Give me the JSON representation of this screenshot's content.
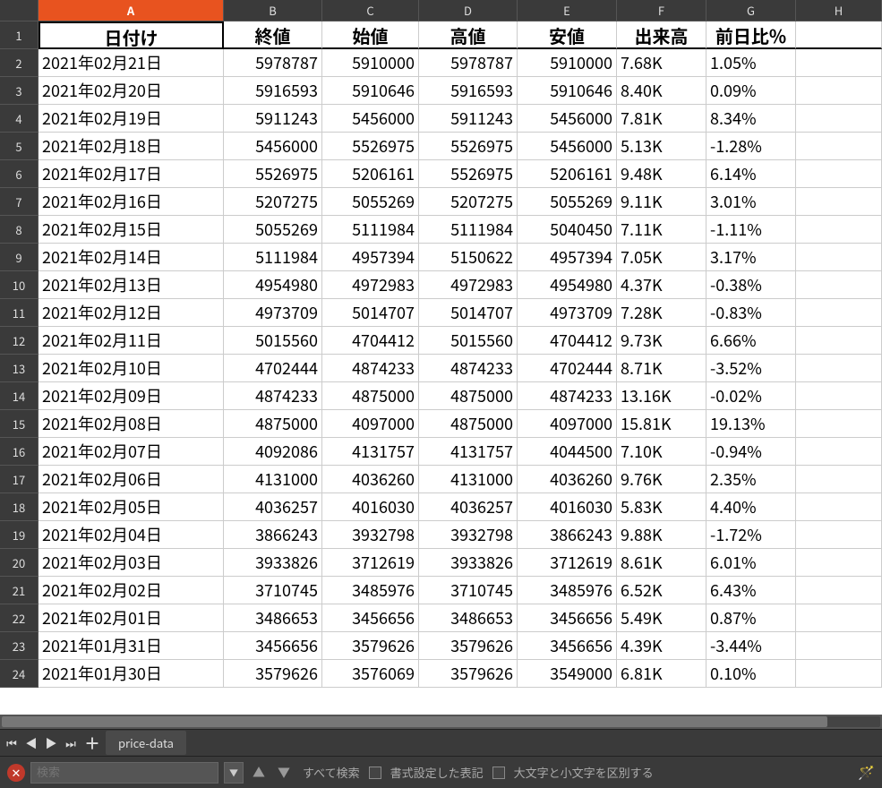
{
  "columns": [
    "A",
    "B",
    "C",
    "D",
    "E",
    "F",
    "G",
    "H"
  ],
  "active_column": "A",
  "row_count": 24,
  "table": {
    "headers": [
      "日付け",
      "終値",
      "始値",
      "高値",
      "安値",
      "出来高",
      "前日比%"
    ],
    "rows": [
      [
        "2021年02月21日",
        "5978787",
        "5910000",
        "5978787",
        "5910000",
        "7.68K",
        "1.05%"
      ],
      [
        "2021年02月20日",
        "5916593",
        "5910646",
        "5916593",
        "5910646",
        "8.40K",
        "0.09%"
      ],
      [
        "2021年02月19日",
        "5911243",
        "5456000",
        "5911243",
        "5456000",
        "7.81K",
        "8.34%"
      ],
      [
        "2021年02月18日",
        "5456000",
        "5526975",
        "5526975",
        "5456000",
        "5.13K",
        "-1.28%"
      ],
      [
        "2021年02月17日",
        "5526975",
        "5206161",
        "5526975",
        "5206161",
        "9.48K",
        "6.14%"
      ],
      [
        "2021年02月16日",
        "5207275",
        "5055269",
        "5207275",
        "5055269",
        "9.11K",
        "3.01%"
      ],
      [
        "2021年02月15日",
        "5055269",
        "5111984",
        "5111984",
        "5040450",
        "7.11K",
        "-1.11%"
      ],
      [
        "2021年02月14日",
        "5111984",
        "4957394",
        "5150622",
        "4957394",
        "7.05K",
        "3.17%"
      ],
      [
        "2021年02月13日",
        "4954980",
        "4972983",
        "4972983",
        "4954980",
        "4.37K",
        "-0.38%"
      ],
      [
        "2021年02月12日",
        "4973709",
        "5014707",
        "5014707",
        "4973709",
        "7.28K",
        "-0.83%"
      ],
      [
        "2021年02月11日",
        "5015560",
        "4704412",
        "5015560",
        "4704412",
        "9.73K",
        "6.66%"
      ],
      [
        "2021年02月10日",
        "4702444",
        "4874233",
        "4874233",
        "4702444",
        "8.71K",
        "-3.52%"
      ],
      [
        "2021年02月09日",
        "4874233",
        "4875000",
        "4875000",
        "4874233",
        "13.16K",
        "-0.02%"
      ],
      [
        "2021年02月08日",
        "4875000",
        "4097000",
        "4875000",
        "4097000",
        "15.81K",
        "19.13%"
      ],
      [
        "2021年02月07日",
        "4092086",
        "4131757",
        "4131757",
        "4044500",
        "7.10K",
        "-0.94%"
      ],
      [
        "2021年02月06日",
        "4131000",
        "4036260",
        "4131000",
        "4036260",
        "9.76K",
        "2.35%"
      ],
      [
        "2021年02月05日",
        "4036257",
        "4016030",
        "4036257",
        "4016030",
        "5.83K",
        "4.40%"
      ],
      [
        "2021年02月04日",
        "3866243",
        "3932798",
        "3932798",
        "3866243",
        "9.88K",
        "-1.72%"
      ],
      [
        "2021年02月03日",
        "3933826",
        "3712619",
        "3933826",
        "3712619",
        "8.61K",
        "6.01%"
      ],
      [
        "2021年02月02日",
        "3710745",
        "3485976",
        "3710745",
        "3485976",
        "6.52K",
        "6.43%"
      ],
      [
        "2021年02月01日",
        "3486653",
        "3456656",
        "3486653",
        "3456656",
        "5.49K",
        "0.87%"
      ],
      [
        "2021年01月31日",
        "3456656",
        "3579626",
        "3579626",
        "3456656",
        "4.39K",
        "-3.44%"
      ],
      [
        "2021年01月30日",
        "3579626",
        "3576069",
        "3579626",
        "3549000",
        "6.81K",
        "0.10%"
      ]
    ],
    "column_alignment": [
      "txt",
      "num",
      "num",
      "num",
      "num",
      "txt",
      "txt"
    ]
  },
  "sheet_tab": "price-data",
  "findbar": {
    "placeholder": "検索",
    "find_all": "すべて検索",
    "formatted": "書式設定した表記",
    "match_case": "大文字と小文字を区別する"
  }
}
